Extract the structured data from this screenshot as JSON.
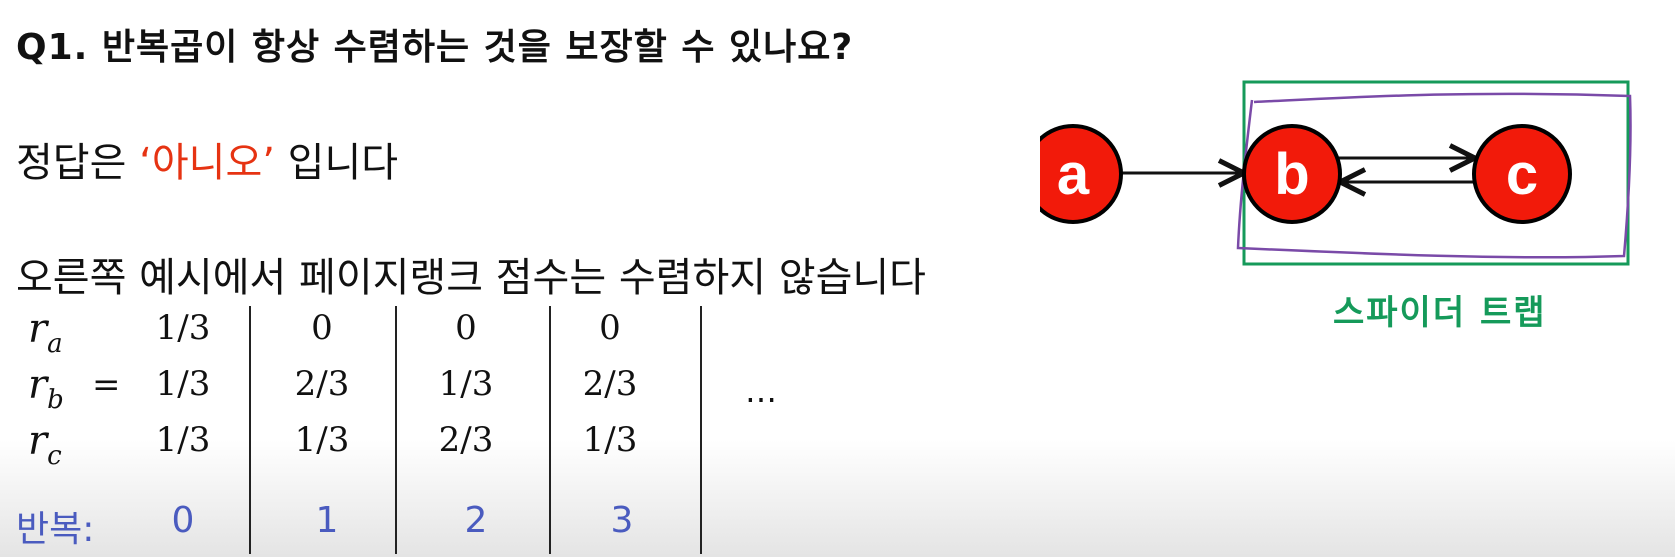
{
  "question": "Q1. 반복곱이 항상 수렴하는 것을 보장할 수 있나요?",
  "answer": {
    "prefix": "정답은 ",
    "highlight": "‘아니오’",
    "suffix": " 입니다"
  },
  "example_text": "오른쪽 예시에서 페이지랭크 점수는 수렴하지 않습니다",
  "table": {
    "rows": [
      {
        "var": "r",
        "sub": "a",
        "values": [
          "1/3",
          "0",
          "0",
          "0"
        ]
      },
      {
        "var": "r",
        "sub": "b",
        "values": [
          "1/3",
          "2/3",
          "1/3",
          "2/3"
        ]
      },
      {
        "var": "r",
        "sub": "c",
        "values": [
          "1/3",
          "1/3",
          "2/3",
          "1/3"
        ]
      }
    ],
    "equals": "=",
    "ellipsis": "…",
    "iteration_label": "반복:",
    "iterations": [
      "0",
      "1",
      "2",
      "3"
    ]
  },
  "graph": {
    "nodes": [
      "a",
      "b",
      "c"
    ],
    "node_color": "#f21a0a",
    "trap_color": "#159a5a",
    "scribble_color": "#7a4aa8",
    "trap_label": "스파이더 트랩"
  }
}
